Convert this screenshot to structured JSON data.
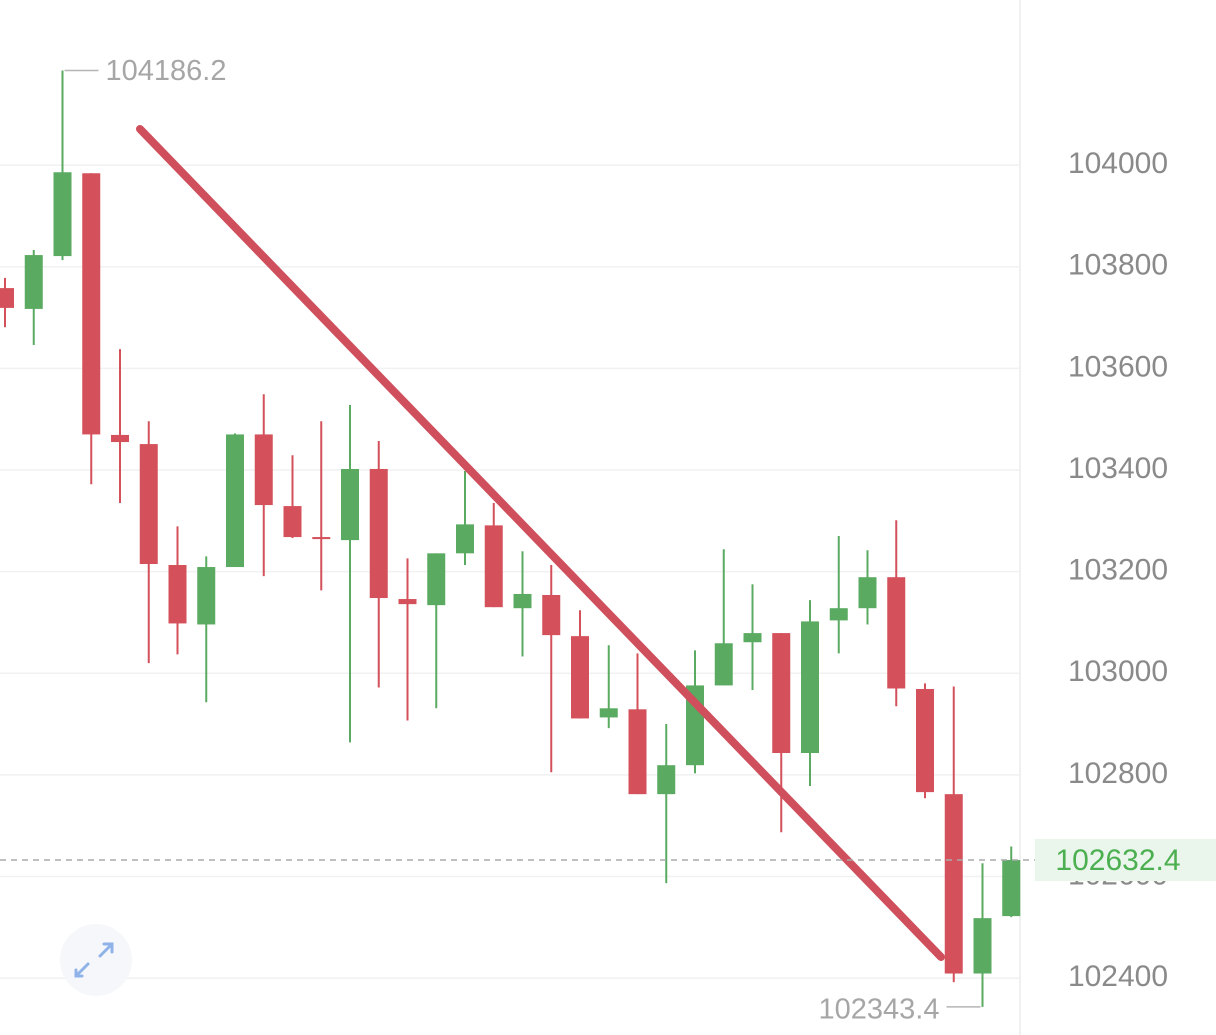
{
  "chart_data": {
    "type": "candlestick",
    "open": [
      103758,
      103717,
      103821,
      103984,
      103469,
      103451,
      103213,
      103096,
      103209,
      103470,
      103329,
      103268,
      103262,
      103402,
      103146,
      103134,
      103236,
      103291,
      103128,
      103154,
      103073,
      102913,
      102929,
      102762,
      102819,
      102976,
      103061,
      103079,
      102843,
      103104,
      103128,
      103189,
      102969,
      102762,
      102409,
      102522
    ],
    "high": [
      103778,
      103833,
      104186.2,
      103984,
      103638,
      103496,
      103289,
      103230,
      103472,
      103549,
      103429,
      103496,
      103528,
      103457,
      103226,
      103236,
      103398,
      103335,
      103240,
      103213,
      103124,
      103055,
      103039,
      102900,
      103045,
      103244,
      103175,
      103079,
      103144,
      103270,
      103242,
      103301,
      102980,
      102974,
      102626,
      102659
    ],
    "low": [
      103681,
      103646,
      103813,
      103372,
      103335,
      103020,
      103037,
      102943,
      103209,
      103191,
      103266,
      103163,
      102864,
      102972,
      102907,
      102931,
      103213,
      103130,
      103033,
      102805,
      102911,
      102892,
      102762,
      102587,
      102803,
      102976,
      102967,
      102687,
      102778,
      103039,
      103096,
      102935,
      102754,
      102392,
      102343.4,
      102520
    ],
    "close": [
      103719,
      103823,
      103986,
      103470,
      103455,
      103215,
      103098,
      103209,
      103470,
      103331,
      103268,
      103264,
      103402,
      103148,
      103136,
      103236,
      103293,
      103130,
      103156,
      103075,
      102911,
      102931,
      102762,
      102819,
      102976,
      103059,
      103079,
      102843,
      103102,
      103128,
      103189,
      102970,
      102766,
      102409,
      102518,
      102632.4
    ],
    "up_color": "#5aab61",
    "down_color": "#d4505a",
    "ylim": [
      102288,
      104325
    ],
    "yticks": [
      102400,
      102600,
      102800,
      103000,
      103200,
      103400,
      103600,
      103800,
      104000
    ],
    "grid": true
  }
}
